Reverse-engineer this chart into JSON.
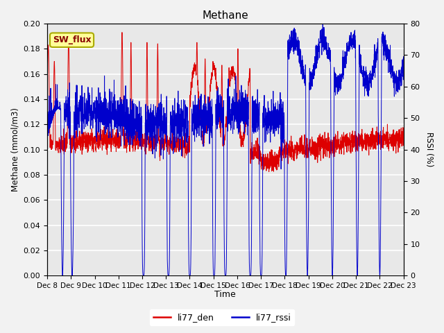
{
  "title": "Methane",
  "xlabel": "Time",
  "ylabel_left": "Methane (mmol/m3)",
  "ylabel_right": "RSSI (%)",
  "ylim_left": [
    0.0,
    0.2
  ],
  "ylim_right": [
    0,
    80
  ],
  "yticks_left": [
    0.0,
    0.02,
    0.04,
    0.06,
    0.08,
    0.1,
    0.12,
    0.14,
    0.16,
    0.18,
    0.2
  ],
  "yticks_right": [
    0,
    10,
    20,
    30,
    40,
    50,
    60,
    70,
    80
  ],
  "x_tick_labels": [
    "Dec 8",
    "Dec 9",
    "Dec 10",
    "Dec 11",
    "Dec 12",
    "Dec 13",
    "Dec 14",
    "Dec 15",
    "Dec 16",
    "Dec 17",
    "Dec 18",
    "Dec 19",
    "Dec 20",
    "Dec 21",
    "Dec 22",
    "Dec 23"
  ],
  "line_red_color": "#dd0000",
  "line_blue_color": "#0000cc",
  "legend_red": "li77_den",
  "legend_blue": "li77_rssi",
  "annotation_text": "SW_flux",
  "annotation_bg": "#ffff99",
  "annotation_border": "#aaaa00",
  "bg_color": "#e8e8e8",
  "grid_color": "#ffffff",
  "n_points": 3000,
  "seed": 42
}
